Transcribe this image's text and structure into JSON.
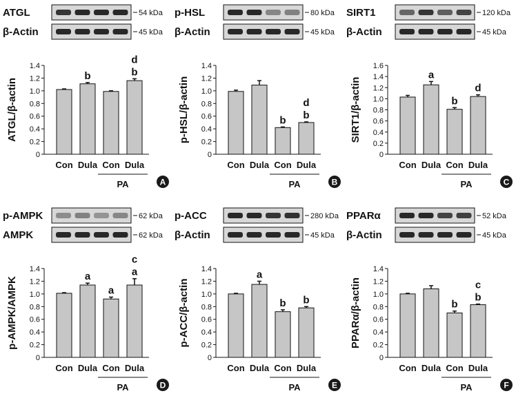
{
  "chart_data": [
    {
      "type": "bar",
      "panel_letter": "A",
      "blot_label_1": "ATGL",
      "blot_kda_1": "54 kDa",
      "blot_label_2": "β-Actin",
      "blot_kda_2": "45 kDa",
      "ylabel": "ATGL/β-actin",
      "categories": [
        "Con",
        "Dula",
        "Con",
        "Dula"
      ],
      "group_label": "PA",
      "values": [
        1.02,
        1.11,
        0.99,
        1.16
      ],
      "errors": [
        0.01,
        0.02,
        0.01,
        0.03
      ],
      "ylim": [
        0,
        1.4
      ],
      "yticks": [
        "0",
        "0.2",
        "0.4",
        "0.6",
        "0.8",
        "1.0",
        "1.2",
        "1.4"
      ],
      "sig": [
        [],
        [
          "b"
        ],
        [],
        [
          "d",
          "b"
        ]
      ]
    },
    {
      "type": "bar",
      "panel_letter": "B",
      "blot_label_1": "p-HSL",
      "blot_kda_1": "80 kDa",
      "blot_label_2": "β-Actin",
      "blot_kda_2": "45 kDa",
      "ylabel": "p-HSL/β-actin",
      "categories": [
        "Con",
        "Dula",
        "Con",
        "Dula"
      ],
      "group_label": "PA",
      "values": [
        0.99,
        1.09,
        0.42,
        0.5
      ],
      "errors": [
        0.02,
        0.07,
        0.01,
        0.01
      ],
      "ylim": [
        0,
        1.4
      ],
      "yticks": [
        "0",
        "0.2",
        "0.4",
        "0.6",
        "0.8",
        "1.0",
        "1.2",
        "1.4"
      ],
      "sig": [
        [],
        [],
        [
          "b"
        ],
        [
          "d",
          "b"
        ]
      ]
    },
    {
      "type": "bar",
      "panel_letter": "C",
      "blot_label_1": "SIRT1",
      "blot_kda_1": "120 kDa",
      "blot_label_2": "β-Actin",
      "blot_kda_2": "45 kDa",
      "ylabel": "SIRT1/β-actin",
      "categories": [
        "Con",
        "Dula",
        "Con",
        "Dula"
      ],
      "group_label": "PA",
      "values": [
        1.03,
        1.25,
        0.81,
        1.04
      ],
      "errors": [
        0.03,
        0.06,
        0.03,
        0.03
      ],
      "ylim": [
        0,
        1.6
      ],
      "yticks": [
        "0",
        "0.2",
        "0.4",
        "0.6",
        "0.8",
        "1.0",
        "1.2",
        "1.4",
        "1.6"
      ],
      "sig": [
        [],
        [
          "a"
        ],
        [
          "b"
        ],
        [
          "d"
        ]
      ]
    },
    {
      "type": "bar",
      "panel_letter": "D",
      "blot_label_1": "p-AMPK",
      "blot_kda_1": "62 kDa",
      "blot_label_2": "AMPK",
      "blot_kda_2": "62 kDa",
      "ylabel": "p-AMPK/AMPK",
      "categories": [
        "Con",
        "Dula",
        "Con",
        "Dula"
      ],
      "group_label": "PA",
      "values": [
        1.01,
        1.14,
        0.92,
        1.14
      ],
      "errors": [
        0.01,
        0.03,
        0.03,
        0.1
      ],
      "ylim": [
        0,
        1.4
      ],
      "yticks": [
        "0",
        "0.2",
        "0.4",
        "0.6",
        "0.8",
        "1.0",
        "1.2",
        "1.4"
      ],
      "sig": [
        [],
        [
          "a"
        ],
        [
          "a"
        ],
        [
          "c",
          "a"
        ]
      ]
    },
    {
      "type": "bar",
      "panel_letter": "E",
      "blot_label_1": "p-ACC",
      "blot_kda_1": "280 kDa",
      "blot_label_2": "β-Actin",
      "blot_kda_2": "45 kDa",
      "ylabel": "p-ACC/β-actin",
      "categories": [
        "Con",
        "Dula",
        "Con",
        "Dula"
      ],
      "group_label": "PA",
      "values": [
        1.0,
        1.15,
        0.72,
        0.78
      ],
      "errors": [
        0.01,
        0.05,
        0.03,
        0.02
      ],
      "ylim": [
        0,
        1.4
      ],
      "yticks": [
        "0",
        "0.2",
        "0.4",
        "0.6",
        "0.8",
        "1.0",
        "1.2",
        "1.4"
      ],
      "sig": [
        [],
        [
          "a"
        ],
        [
          "b"
        ],
        [
          "b"
        ]
      ]
    },
    {
      "type": "bar",
      "panel_letter": "F",
      "blot_label_1": "PPARα",
      "blot_kda_1": "52 kDa",
      "blot_label_2": "β-Actin",
      "blot_kda_2": "45 kDa",
      "ylabel": "PPARα/β-actin",
      "categories": [
        "Con",
        "Dula",
        "Con",
        "Dula"
      ],
      "group_label": "PA",
      "values": [
        1.0,
        1.08,
        0.7,
        0.83
      ],
      "errors": [
        0.01,
        0.05,
        0.03,
        0.01
      ],
      "ylim": [
        0,
        1.4
      ],
      "yticks": [
        "0",
        "0.2",
        "0.4",
        "0.6",
        "0.8",
        "1.0",
        "1.2",
        "1.4"
      ],
      "sig": [
        [],
        [],
        [
          "b"
        ],
        [
          "c",
          "b"
        ]
      ]
    }
  ]
}
